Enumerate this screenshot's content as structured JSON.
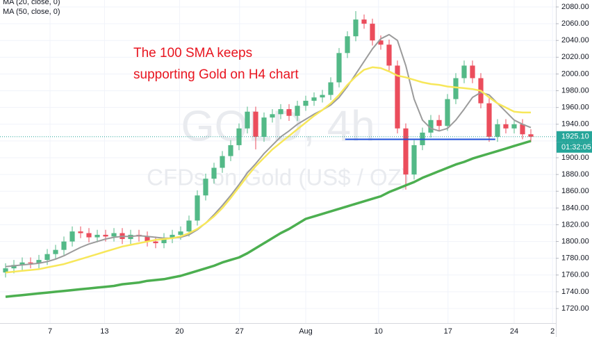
{
  "chart_data": {
    "type": "candlestick",
    "watermark": [
      "GOLD, 4h",
      "CFDs on Gold (US$ / OZ)"
    ],
    "annotation": [
      "The 100 SMA keeps",
      "supporting Gold on H4 chart"
    ],
    "up_color": "#53b987",
    "down_color": "#eb4d5c",
    "x": [
      1,
      2.5,
      4,
      5.5,
      7,
      8.5,
      10,
      11.5,
      13,
      14.5,
      16,
      17.5,
      19,
      20.5,
      22,
      23.5,
      25,
      26.5,
      28,
      29.5,
      31,
      32.5,
      34,
      35.5,
      37,
      38.5,
      40,
      41.5,
      43,
      44.5,
      46,
      47.5,
      49,
      50.5,
      52,
      53.5,
      55,
      56.5,
      58,
      59.5,
      61,
      62.5,
      64,
      65.5,
      67,
      68.5,
      70,
      71.5,
      73,
      74.5,
      76,
      77.5,
      79,
      80.5,
      82,
      83.5,
      85,
      86.5,
      88,
      89.5,
      91,
      92.5,
      94,
      95.5
    ],
    "open": [
      1763,
      1768,
      1772,
      1775,
      1774,
      1778,
      1785,
      1790,
      1800,
      1812,
      1810,
      1805,
      1808,
      1806,
      1810,
      1803,
      1808,
      1806,
      1800,
      1798,
      1804,
      1808,
      1812,
      1825,
      1855,
      1875,
      1888,
      1902,
      1915,
      1935,
      1955,
      1925,
      1948,
      1952,
      1958,
      1950,
      1962,
      1968,
      1972,
      1975,
      1990,
      2025,
      2045,
      2065,
      2060,
      2040,
      2035,
      2010,
      1935,
      1880,
      1915,
      1930,
      1945,
      1938,
      1970,
      1995,
      2010,
      1995,
      1965,
      1925,
      1940,
      1935,
      1940,
      1928
    ],
    "high": [
      1774,
      1778,
      1781,
      1781,
      1784,
      1791,
      1796,
      1806,
      1818,
      1818,
      1816,
      1814,
      1814,
      1816,
      1816,
      1814,
      1814,
      1812,
      1806,
      1810,
      1814,
      1818,
      1831,
      1861,
      1881,
      1894,
      1908,
      1921,
      1941,
      1961,
      1961,
      1954,
      1958,
      1964,
      1964,
      1968,
      1974,
      1978,
      1981,
      1996,
      2031,
      2051,
      2075,
      2071,
      2066,
      2046,
      2041,
      2016,
      1941,
      1921,
      1936,
      1951,
      1951,
      1976,
      2001,
      2016,
      2016,
      2001,
      1971,
      1946,
      1946,
      1946,
      1946,
      1934
    ],
    "low": [
      1757,
      1762,
      1766,
      1768,
      1768,
      1772,
      1779,
      1784,
      1794,
      1804,
      1799,
      1799,
      1800,
      1800,
      1797,
      1797,
      1800,
      1794,
      1792,
      1792,
      1798,
      1802,
      1806,
      1819,
      1849,
      1869,
      1882,
      1896,
      1909,
      1929,
      1910,
      1919,
      1942,
      1946,
      1944,
      1944,
      1956,
      1962,
      1966,
      1969,
      1984,
      2019,
      2039,
      2054,
      2034,
      2029,
      2004,
      1929,
      1862,
      1874,
      1909,
      1924,
      1932,
      1932,
      1964,
      1989,
      1989,
      1959,
      1919,
      1919,
      1929,
      1929,
      1922,
      1919
    ],
    "close": [
      1768,
      1772,
      1775,
      1774,
      1778,
      1785,
      1790,
      1800,
      1812,
      1810,
      1805,
      1808,
      1806,
      1810,
      1803,
      1808,
      1806,
      1800,
      1798,
      1804,
      1808,
      1812,
      1825,
      1855,
      1875,
      1888,
      1902,
      1915,
      1935,
      1955,
      1925,
      1948,
      1952,
      1958,
      1950,
      1962,
      1968,
      1972,
      1975,
      1990,
      2025,
      2045,
      2065,
      2060,
      2040,
      2035,
      2010,
      1935,
      1880,
      1915,
      1930,
      1945,
      1938,
      1970,
      1995,
      2010,
      1995,
      1965,
      1925,
      1940,
      1935,
      1940,
      1928,
      1925.1
    ],
    "series": [
      {
        "name": "MA (20, close, 0)",
        "color": "#9b9b9b",
        "width": 2,
        "values": [
          1770,
          1771,
          1772,
          1773,
          1774,
          1776,
          1779,
          1783,
          1788,
          1793,
          1797,
          1800,
          1803,
          1805,
          1806,
          1806,
          1807,
          1806,
          1805,
          1804,
          1804,
          1805,
          1808,
          1814,
          1822,
          1832,
          1843,
          1855,
          1868,
          1882,
          1893,
          1905,
          1915,
          1925,
          1932,
          1940,
          1946,
          1952,
          1957,
          1963,
          1972,
          1985,
          2000,
          2015,
          2030,
          2042,
          2047,
          2040,
          2010,
          1970,
          1945,
          1935,
          1932,
          1935,
          1945,
          1958,
          1972,
          1978,
          1975,
          1965,
          1955,
          1945,
          1940,
          1936
        ]
      },
      {
        "name": "MA (50, close, 0)",
        "color": "#f7e75a",
        "width": 2.5,
        "values": [
          1763,
          1764,
          1765,
          1766,
          1767,
          1769,
          1771,
          1773,
          1776,
          1779,
          1782,
          1785,
          1788,
          1791,
          1794,
          1796,
          1798,
          1800,
          1802,
          1803,
          1804,
          1806,
          1810,
          1815,
          1822,
          1830,
          1840,
          1852,
          1865,
          1878,
          1890,
          1900,
          1910,
          1918,
          1926,
          1934,
          1942,
          1950,
          1957,
          1965,
          1975,
          1987,
          1997,
          2005,
          2008,
          2007,
          2003,
          1998,
          1996,
          1993,
          1990,
          1988,
          1987,
          1985,
          1984,
          1983,
          1982,
          1980,
          1972,
          1965,
          1960,
          1955,
          1954,
          1954
        ]
      },
      {
        "color": "#4caf50",
        "width": 3.5,
        "values": [
          1734,
          1735,
          1736,
          1737,
          1738,
          1739,
          1740,
          1741,
          1742,
          1743,
          1744,
          1745,
          1746,
          1747,
          1749,
          1750,
          1751,
          1753,
          1754,
          1755,
          1757,
          1759,
          1762,
          1765,
          1768,
          1771,
          1775,
          1778,
          1781,
          1786,
          1792,
          1798,
          1804,
          1810,
          1815,
          1821,
          1827,
          1830,
          1833,
          1836,
          1839,
          1842,
          1845,
          1848,
          1851,
          1854,
          1859,
          1863,
          1867,
          1871,
          1876,
          1880,
          1884,
          1888,
          1892,
          1895,
          1899,
          1902,
          1905,
          1908,
          1911,
          1914,
          1917,
          1920
        ]
      }
    ],
    "support_level": {
      "value": 1922,
      "x": [
        62.1,
        89.1
      ],
      "color": "#1e4fd8"
    },
    "current_price": {
      "value": 1925.1,
      "label": "1925.10",
      "color": "#26a69a"
    },
    "countdown": "01:32:05",
    "xlim": [
      0,
      100
    ],
    "xticks": [
      {
        "value": 9,
        "label": "7"
      },
      {
        "value": 18.8,
        "label": "13"
      },
      {
        "value": 32.3,
        "label": "20"
      },
      {
        "value": 43.1,
        "label": "27"
      },
      {
        "value": 55,
        "label": "Aug"
      },
      {
        "value": 68.1,
        "label": "10"
      },
      {
        "value": 80.6,
        "label": "17"
      },
      {
        "value": 92.5,
        "label": "24"
      },
      {
        "value": 99.4,
        "label": "2"
      }
    ],
    "ylim": [
      1702.6,
      2088.3
    ],
    "yticks": [
      {
        "value": 1720,
        "label": "1720.00"
      },
      {
        "value": 1740,
        "label": "1740.00"
      },
      {
        "value": 1760,
        "label": "1760.00"
      },
      {
        "value": 1780,
        "label": "1780.00"
      },
      {
        "value": 1800,
        "label": "1800.00"
      },
      {
        "value": 1820,
        "label": "1820.00"
      },
      {
        "value": 1840,
        "label": "1840.00"
      },
      {
        "value": 1860,
        "label": "1860.00"
      },
      {
        "value": 1880,
        "label": "1880.00"
      },
      {
        "value": 1900,
        "label": "1900.00"
      },
      {
        "value": 1920,
        "label": "1920.00"
      },
      {
        "value": 1940,
        "label": "1940.00"
      },
      {
        "value": 1960,
        "label": "1960.00"
      },
      {
        "value": 1980,
        "label": "1980.00"
      },
      {
        "value": 2000,
        "label": "2000.00"
      },
      {
        "value": 2020,
        "label": "2020.00"
      },
      {
        "value": 2040,
        "label": "2040.00"
      },
      {
        "value": 2060,
        "label": "2060.00"
      },
      {
        "value": 2080,
        "label": "2080.00"
      }
    ],
    "grid": true
  }
}
